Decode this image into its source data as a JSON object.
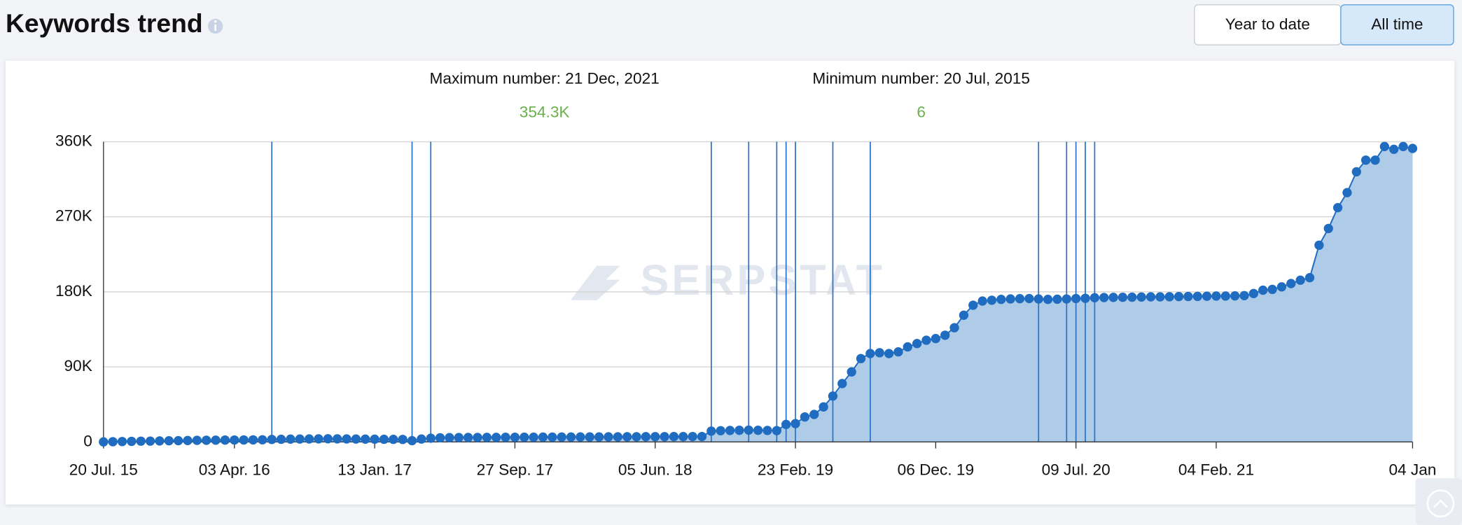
{
  "header": {
    "title": "Keywords trend",
    "buttons": [
      "Year to date",
      "All time"
    ],
    "active_button": 1
  },
  "summary": {
    "max_label": "Maximum number: 21 Dec, 2021",
    "max_value": "354.3K",
    "min_label": "Minimum number: 20 Jul, 2015",
    "min_value": "6"
  },
  "watermark": "SERPSTAT",
  "chart_data": {
    "type": "area",
    "color": "#1f6cc0",
    "fill_color": "#aecbe8",
    "event_color": "#2a73c9",
    "grid": true,
    "xlim": [
      0,
      140
    ],
    "xticks": [
      {
        "value": 0,
        "label": "20 Jul. 15"
      },
      {
        "value": 14,
        "label": "03 Apr. 16"
      },
      {
        "value": 29,
        "label": "13 Jan. 17"
      },
      {
        "value": 44,
        "label": "27 Sep. 17"
      },
      {
        "value": 59,
        "label": "05 Jun. 18"
      },
      {
        "value": 74,
        "label": "23 Feb. 19"
      },
      {
        "value": 89,
        "label": "06 Dec. 19"
      },
      {
        "value": 104,
        "label": "09 Jul. 20"
      },
      {
        "value": 119,
        "label": "04 Feb. 21"
      },
      {
        "value": 140,
        "label": "04 Jan"
      }
    ],
    "ylim": [
      0,
      360000
    ],
    "yticks": [
      0,
      {
        "value": 90000,
        "label": "90K"
      },
      {
        "value": 180000,
        "label": "180K"
      },
      {
        "value": 270000,
        "label": "270K"
      },
      {
        "value": 360000,
        "label": "360K"
      }
    ],
    "event_x": [
      18,
      33,
      35,
      65,
      69,
      72,
      73,
      74,
      78,
      82,
      100,
      103,
      104,
      105,
      106
    ],
    "values": [
      6,
      300,
      500,
      700,
      900,
      1000,
      1200,
      1400,
      1500,
      1700,
      1900,
      2000,
      2100,
      2200,
      2300,
      2400,
      2500,
      2600,
      3000,
      3200,
      3400,
      3500,
      3600,
      3700,
      3800,
      3700,
      3600,
      3500,
      3400,
      3300,
      3200,
      3100,
      3000,
      1500,
      3500,
      4500,
      5000,
      5200,
      5300,
      5400,
      5400,
      5500,
      5500,
      5600,
      5600,
      5700,
      5700,
      5800,
      5800,
      5900,
      5900,
      6000,
      6000,
      6000,
      6100,
      6100,
      6200,
      6200,
      6300,
      6300,
      6300,
      6400,
      6400,
      6500,
      6500,
      13000,
      13500,
      13800,
      14000,
      14200,
      14000,
      13800,
      13600,
      21000,
      22000,
      30000,
      33000,
      42000,
      55000,
      70000,
      84000,
      100000,
      106000,
      107000,
      106000,
      108000,
      114000,
      118000,
      122000,
      124000,
      128000,
      137000,
      152000,
      164000,
      169000,
      170000,
      171000,
      171500,
      171800,
      172000,
      171500,
      171000,
      171200,
      171500,
      172000,
      172300,
      173000,
      173200,
      173400,
      173500,
      173600,
      173800,
      174000,
      174000,
      174200,
      174400,
      174500,
      174600,
      174800,
      175000,
      175000,
      175200,
      175500,
      178000,
      182000,
      183000,
      186000,
      190000,
      194000,
      197000,
      236000,
      256000,
      281000,
      299000,
      324000,
      338000,
      338000,
      354300,
      351000,
      354300,
      352000
    ]
  }
}
